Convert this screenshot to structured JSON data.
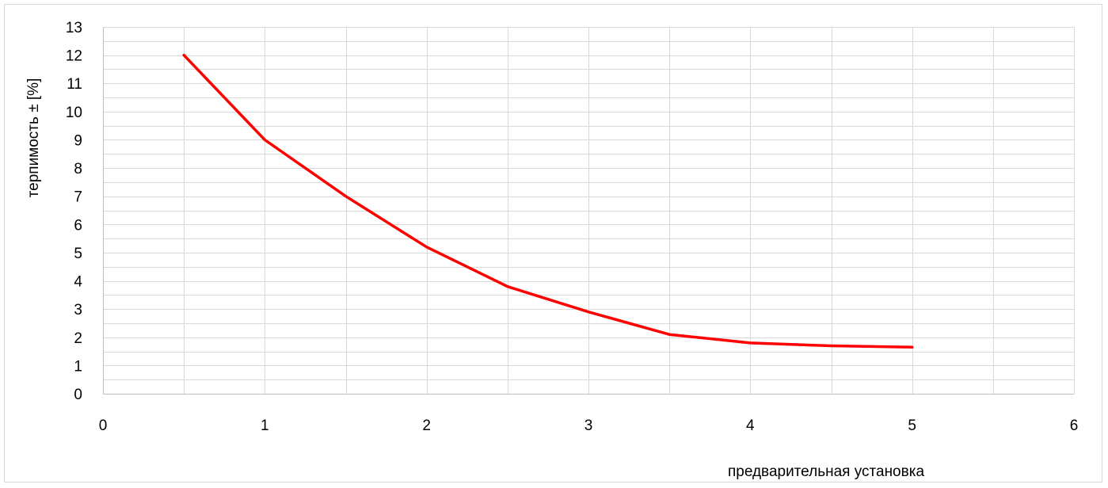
{
  "chart_data": {
    "type": "scatter",
    "title": "",
    "xlabel": "предварительная установка",
    "ylabel": "терпимость ± [%]",
    "xlim": [
      0,
      6
    ],
    "ylim": [
      0,
      13
    ],
    "x_ticks": [
      "0",
      "1",
      "2",
      "3",
      "4",
      "5",
      "6"
    ],
    "y_ticks": [
      "0",
      "1",
      "2",
      "3",
      "4",
      "5",
      "6",
      "7",
      "8",
      "9",
      "10",
      "11",
      "12",
      "13"
    ],
    "x_major_step": 1,
    "x_minor_step": 0.5,
    "y_major_step": 1,
    "y_minor_step": 0.5,
    "grid": true,
    "legend": "none",
    "series": [
      {
        "color": "#ff0000",
        "line": true,
        "markers": false,
        "x": [
          0.5,
          1,
          1.5,
          2,
          2.5,
          3,
          3.5,
          4,
          4.5,
          5
        ],
        "y": [
          12,
          9,
          7,
          5.2,
          3.8,
          2.9,
          2.1,
          1.8,
          1.7,
          1.65
        ]
      }
    ]
  }
}
